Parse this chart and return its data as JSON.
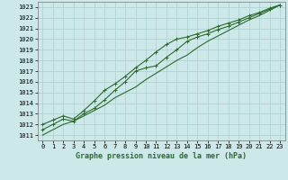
{
  "xlabel": "Graphe pression niveau de la mer (hPa)",
  "xlim": [
    -0.5,
    23.5
  ],
  "ylim": [
    1010.5,
    1023.5
  ],
  "yticks": [
    1011,
    1012,
    1013,
    1014,
    1015,
    1016,
    1017,
    1018,
    1019,
    1020,
    1021,
    1022,
    1023
  ],
  "xticks": [
    0,
    1,
    2,
    3,
    4,
    5,
    6,
    7,
    8,
    9,
    10,
    11,
    12,
    13,
    14,
    15,
    16,
    17,
    18,
    19,
    20,
    21,
    22,
    23
  ],
  "bg_color": "#cce8e8",
  "grid_color": "#aacfcf",
  "line_color": "#2d6a2d",
  "line1_y": [
    1011.0,
    1011.5,
    1012.0,
    1012.3,
    1012.8,
    1013.3,
    1013.8,
    1014.5,
    1015.0,
    1015.5,
    1016.2,
    1016.8,
    1017.4,
    1018.0,
    1018.5,
    1019.2,
    1019.8,
    1020.3,
    1020.8,
    1021.3,
    1021.8,
    1022.2,
    1022.7,
    1023.2
  ],
  "line2_y": [
    1011.5,
    1012.0,
    1012.5,
    1012.3,
    1013.0,
    1013.5,
    1014.3,
    1015.2,
    1016.0,
    1017.0,
    1017.3,
    1017.5,
    1018.3,
    1019.0,
    1019.8,
    1020.2,
    1020.5,
    1020.9,
    1021.2,
    1021.6,
    1022.0,
    1022.4,
    1022.8,
    1023.2
  ],
  "line3_y": [
    1012.0,
    1012.4,
    1012.8,
    1012.5,
    1013.3,
    1014.2,
    1015.2,
    1015.8,
    1016.5,
    1017.3,
    1018.0,
    1018.8,
    1019.5,
    1020.0,
    1020.2,
    1020.5,
    1020.8,
    1021.2,
    1021.5,
    1021.8,
    1022.2,
    1022.5,
    1022.9,
    1023.2
  ],
  "marker_size": 2.5,
  "linewidth": 0.8,
  "tick_fontsize": 5,
  "label_fontsize": 6,
  "figsize": [
    3.2,
    2.0
  ],
  "dpi": 100
}
